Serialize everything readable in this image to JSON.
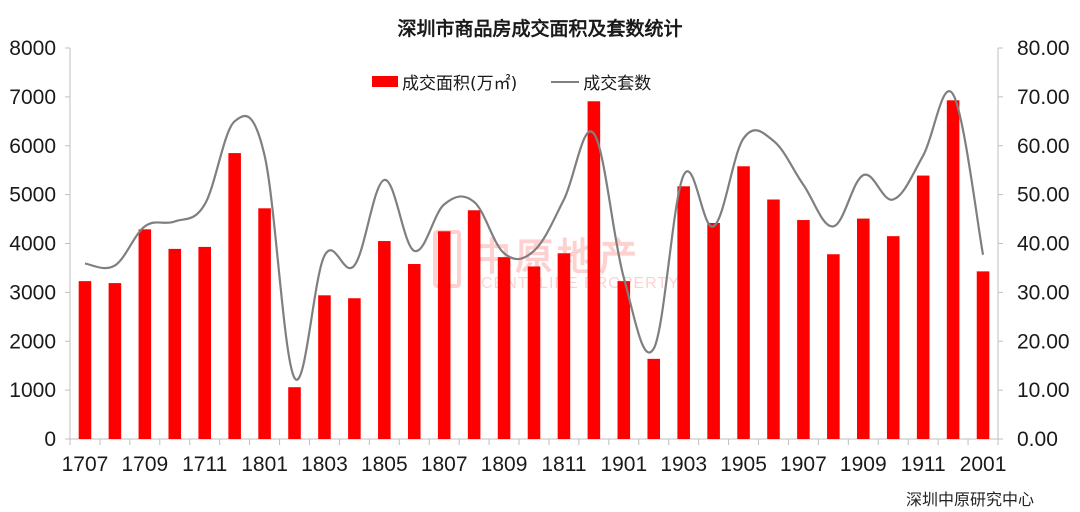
{
  "chart_data": {
    "type": "bar+line",
    "title": "深圳市商品房成交面积及套数统计",
    "categories": [
      "1707",
      "1708",
      "1709",
      "1710",
      "1711",
      "1712",
      "1801",
      "1802",
      "1803",
      "1804",
      "1805",
      "1806",
      "1807",
      "1808",
      "1809",
      "1810",
      "1811",
      "1812",
      "1901",
      "1902",
      "1903",
      "1904",
      "1905",
      "1906",
      "1907",
      "1908",
      "1909",
      "1910",
      "1911",
      "1912",
      "2001"
    ],
    "x_tick_labels": [
      "1707",
      "1709",
      "1711",
      "1801",
      "1803",
      "1805",
      "1807",
      "1809",
      "1811",
      "1901",
      "1903",
      "1905",
      "1907",
      "1909",
      "1911",
      "2001"
    ],
    "series": [
      {
        "name": "成交面积(万㎡)",
        "type": "bar",
        "axis": "left",
        "color": "#ff0000",
        "values": [
          3230,
          3190,
          4290,
          3890,
          3930,
          5850,
          4720,
          1060,
          2940,
          2880,
          4050,
          3580,
          4250,
          4680,
          3720,
          3530,
          3800,
          6910,
          3230,
          1640,
          5170,
          4420,
          5580,
          4900,
          4480,
          3780,
          4510,
          4150,
          5390,
          6930,
          3430
        ]
      },
      {
        "name": "成交套数",
        "type": "line",
        "axis": "right",
        "color": "#7f7f7f",
        "smooth": true,
        "values": [
          35.9,
          35.5,
          43.5,
          44.5,
          48.0,
          65.0,
          58.0,
          12.5,
          37.5,
          35.5,
          53.0,
          38.5,
          48.0,
          48.5,
          38.0,
          38.5,
          49.0,
          62.5,
          33.0,
          18.5,
          54.0,
          43.5,
          61.5,
          61.0,
          52.0,
          43.5,
          54.0,
          49.0,
          58.0,
          70.5,
          37.7
        ]
      }
    ],
    "y_left": {
      "min": 0,
      "max": 8000,
      "ticks": [
        "0",
        "1000",
        "2000",
        "3000",
        "4000",
        "5000",
        "6000",
        "7000",
        "8000"
      ]
    },
    "y_right": {
      "min": 0,
      "max": 80,
      "ticks": [
        "0.00",
        "10.00",
        "20.00",
        "30.00",
        "40.00",
        "50.00",
        "60.00",
        "70.00",
        "80.00"
      ]
    },
    "xlabel": "",
    "ylabel": "",
    "grid": false,
    "legend_position": "top"
  },
  "legend": {
    "bar_label": "成交面积(万㎡)",
    "line_label": "成交套数"
  },
  "source": "深圳中原研究中心",
  "watermark": {
    "cn": "中原地产",
    "en": "CENTALINE PROPERTY"
  }
}
